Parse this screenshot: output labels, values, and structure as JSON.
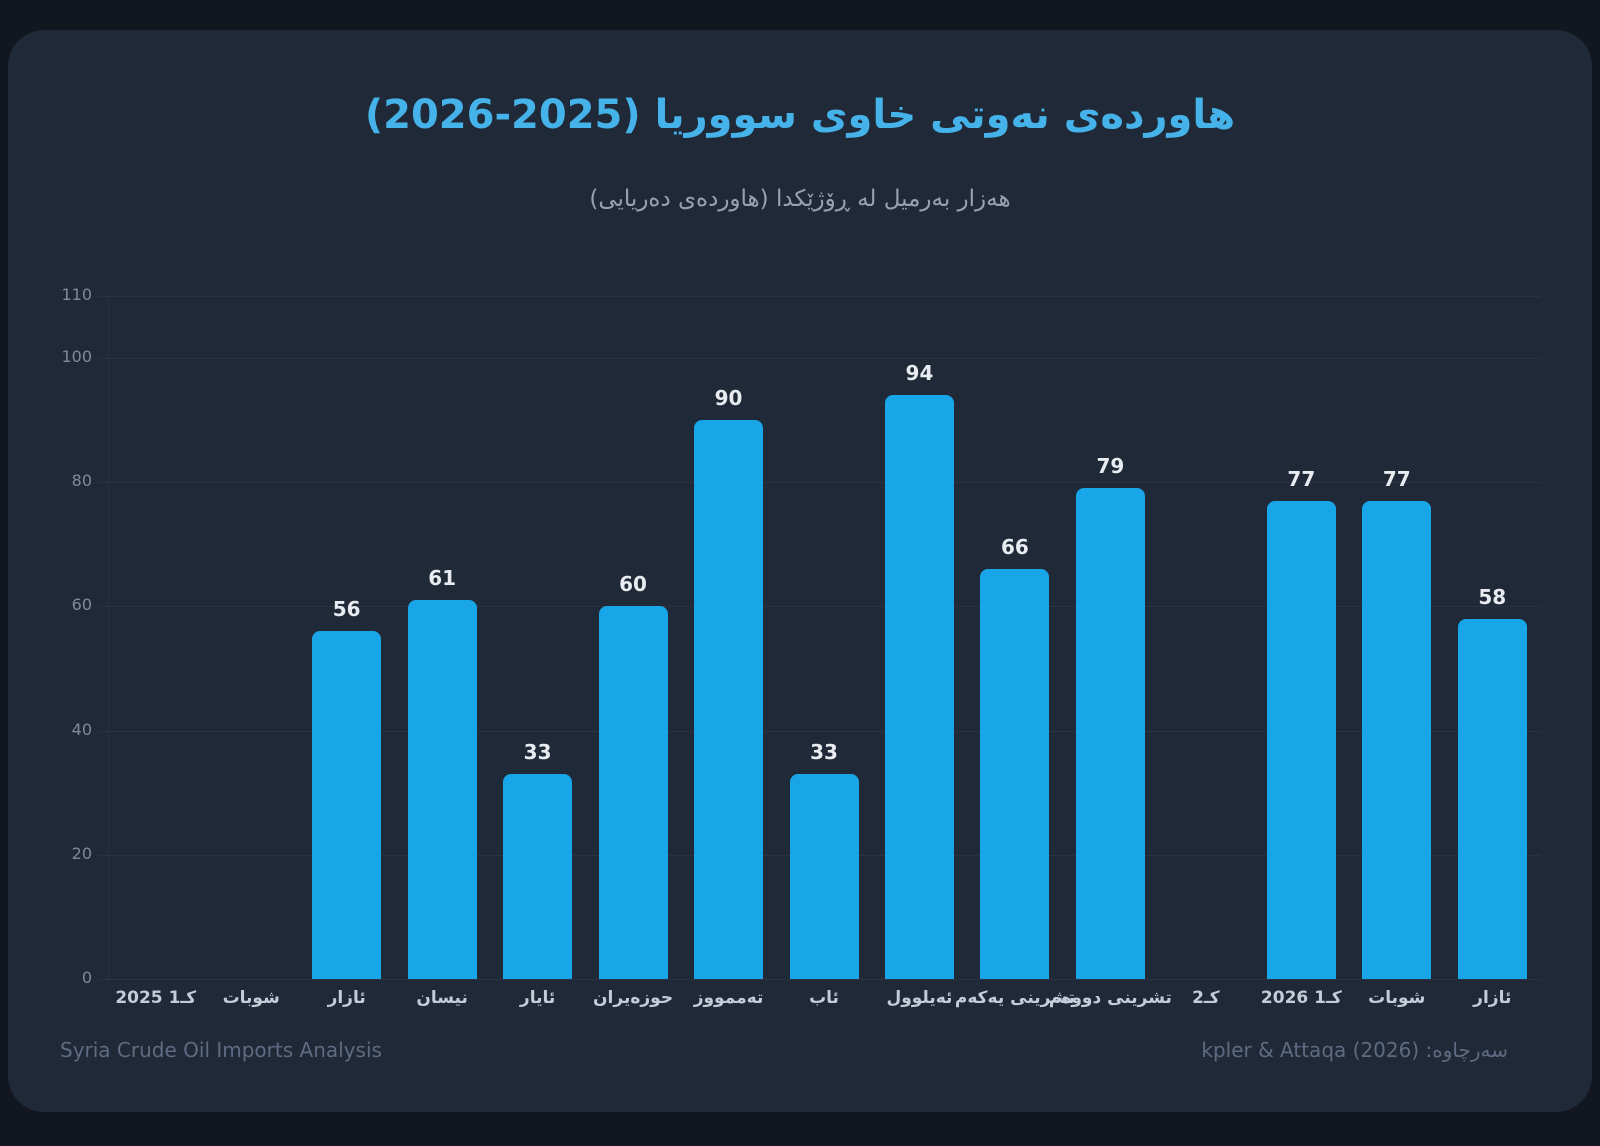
{
  "chart_data": {
    "type": "bar",
    "title": "هاوردەی نەوتی خاوی سووریا (2025-2026)",
    "subtitle": "هەزار بەرمیل لە ڕۆژێکدا (هاوردەی دەریایی)",
    "categories": [
      "كـ1 2025",
      "شوبات",
      "ئازار",
      "نیسان",
      "ئایار",
      "حوزەیران",
      "تەممووز",
      "ئاب",
      "ئەیلوول",
      "تشرینی یەکەم",
      "تشرینی دووەم",
      "كـ2",
      "كـ1 2026",
      "شوبات",
      "ئازار"
    ],
    "values": [
      null,
      null,
      56,
      61,
      33,
      60,
      90,
      33,
      94,
      66,
      79,
      null,
      77,
      77,
      58
    ],
    "ylim": [
      0,
      110
    ],
    "yticks": [
      0,
      20,
      40,
      60,
      80,
      100,
      110
    ],
    "grid": true,
    "legend": false,
    "value_labels_shown": true,
    "xlabel": "",
    "ylabel": ""
  },
  "footer": {
    "left": "Syria Crude Oil Imports Analysis",
    "right": "سەرچاوە: (2026) kpler & Attaqa"
  },
  "colors": {
    "outer_bg": "#12161f",
    "card_bg": "#202937",
    "bar": "#18a6e8",
    "title": "#45b3ea",
    "subtitle": "#97a1b1",
    "grid": "#2b3342",
    "y_label": "#7f8a9d",
    "x_label": "#c4ccd9",
    "value_label": "#e8ebf0",
    "footer": "#5f6b82"
  }
}
